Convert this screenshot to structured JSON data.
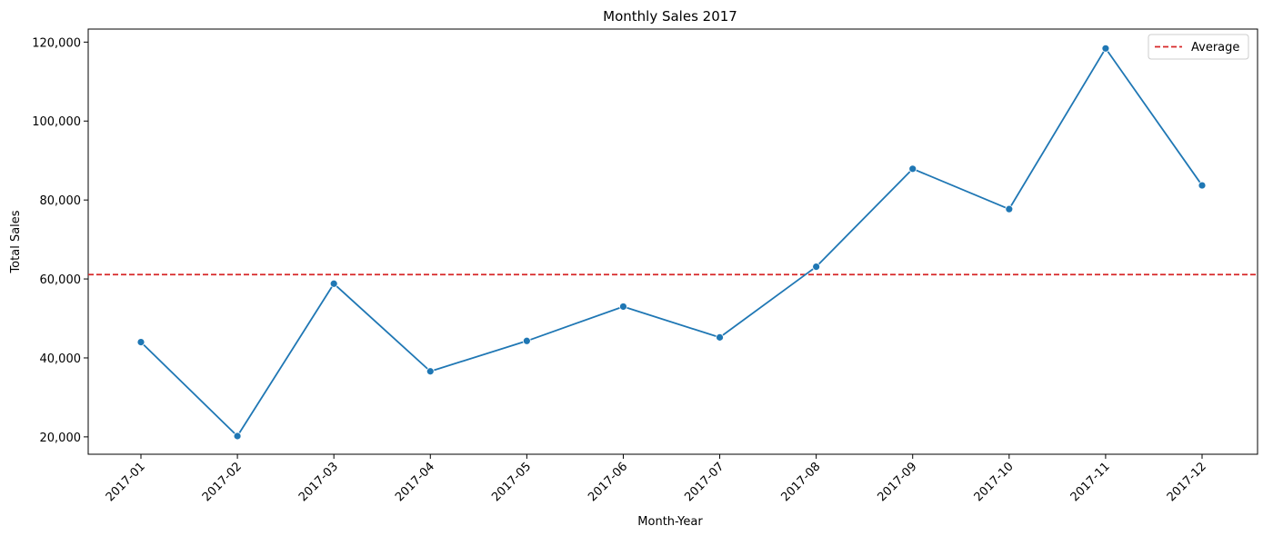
{
  "chart_data": {
    "type": "line",
    "title": "Monthly Sales 2017",
    "xlabel": "Month-Year",
    "ylabel": "Total Sales",
    "categories": [
      "2017-01",
      "2017-02",
      "2017-03",
      "2017-04",
      "2017-05",
      "2017-06",
      "2017-07",
      "2017-08",
      "2017-09",
      "2017-10",
      "2017-11",
      "2017-12"
    ],
    "series": [
      {
        "values": [
          44000,
          20200,
          58800,
          36600,
          44300,
          53000,
          45200,
          63100,
          87900,
          77700,
          118400,
          83700
        ],
        "color": "#1f77b4",
        "marker": "circle"
      }
    ],
    "reference_lines": [
      {
        "name": "Average",
        "value": 61100,
        "color": "#d62728",
        "style": "dashed"
      }
    ],
    "ylim": [
      15600,
      123300
    ],
    "yticks": [
      20000,
      40000,
      60000,
      80000,
      100000,
      120000
    ],
    "ytick_labels": [
      "20,000",
      "40,000",
      "60,000",
      "80,000",
      "100,000",
      "120,000"
    ],
    "xtick_rotation": 45,
    "grid": false,
    "legend": {
      "position": "top-right",
      "entries": [
        {
          "label": "Average",
          "color": "#d62728",
          "style": "dashed"
        }
      ]
    }
  }
}
